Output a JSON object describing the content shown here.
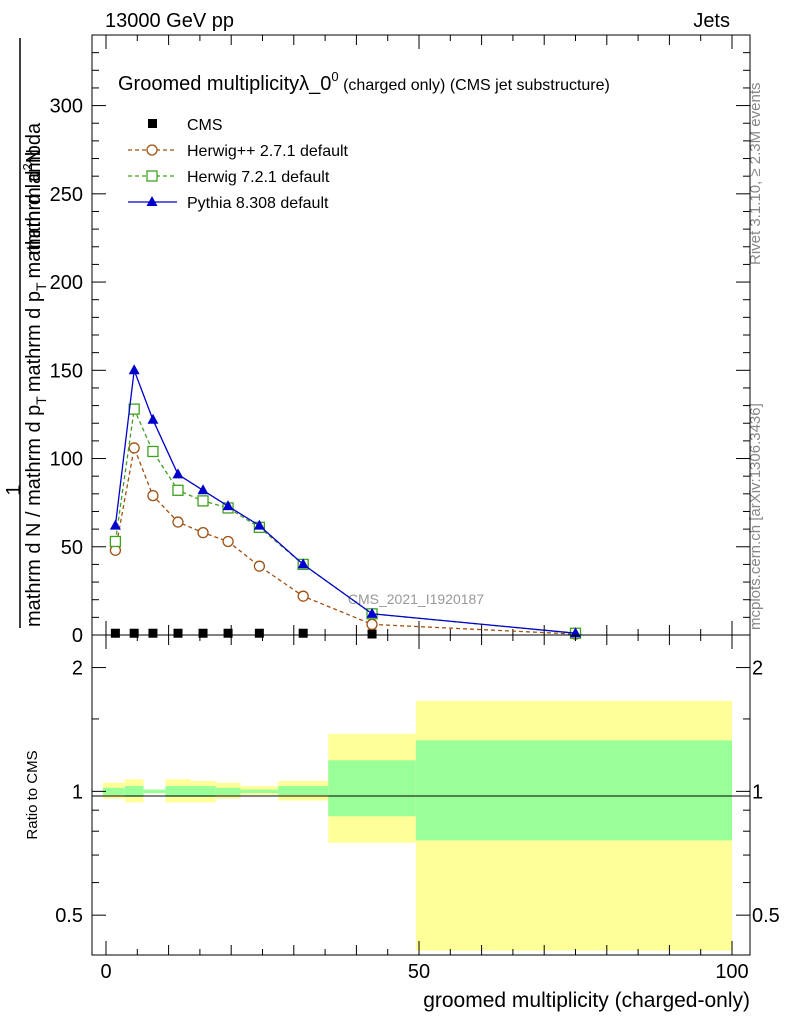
{
  "header": {
    "left": "13000 GeV pp",
    "right": "Jets"
  },
  "side_labels": {
    "rivet": "Rivet 3.1.10, ≥ 2.3M events",
    "mcplots": "mcplots.cern.ch [arXiv:1306.3436]"
  },
  "main_plot": {
    "title_main": "Groomed multiplicityλ_0",
    "title_sup": "0",
    "title_tail": " (charged only) (CMS jet substructure)",
    "ylabel_line1": "1",
    "ylabel_line2_parts": [
      "mathrm d N / mathrm d p",
      "T",
      "mathrm d p",
      "T",
      "mathrm d lambda"
    ],
    "ylabel_line3": "mathrm d",
    "ylabel_line3_sup": "2",
    "ylabel_line3_tail": "N",
    "watermark": "CMS_2021_I1920187",
    "yticks": [
      "0",
      "50",
      "100",
      "150",
      "200",
      "250",
      "300"
    ]
  },
  "ratio_plot": {
    "ylabel": "Ratio to CMS",
    "yticks": [
      "0.5",
      "1",
      "2"
    ],
    "xticks": [
      "0",
      "50",
      "100"
    ],
    "xlabel": "groomed multiplicity (charged-only)"
  },
  "legend": [
    {
      "name": "CMS",
      "marker": "filled-square",
      "color": "#000000"
    },
    {
      "name": "Herwig++ 2.7.1 default",
      "marker": "open-circle",
      "color": "#a05010"
    },
    {
      "name": "Herwig 7.2.1 default",
      "marker": "open-square",
      "color": "#40a020"
    },
    {
      "name": "Pythia 8.308 default",
      "marker": "filled-triangle",
      "color": "#0000cc"
    }
  ],
  "chart_data": {
    "type": "line",
    "x": [
      1.5,
      4.5,
      7.5,
      11.5,
      15.5,
      19.5,
      24.5,
      31.5,
      42.5,
      75
    ],
    "xlim": [
      -2,
      100
    ],
    "ylim": [
      0,
      340
    ],
    "series": [
      {
        "name": "CMS",
        "values": [
          1,
          1,
          1,
          1,
          1,
          1,
          1,
          1,
          0.5,
          0.1
        ]
      },
      {
        "name": "Herwig++ 2.7.1 default",
        "values": [
          48,
          106,
          79,
          64,
          58,
          53,
          39,
          22,
          6,
          0.5
        ]
      },
      {
        "name": "Herwig 7.2.1 default",
        "values": [
          53,
          128,
          104,
          82,
          76,
          72,
          61,
          40,
          12,
          1
        ]
      },
      {
        "name": "Pythia 8.308 default",
        "values": [
          62,
          150,
          122,
          91,
          82,
          73,
          62,
          40,
          12,
          1
        ]
      }
    ],
    "ratio": {
      "scale": "log",
      "ylim": [
        0.4,
        2.4
      ],
      "bands": [
        {
          "x": [
            -0.5,
            3
          ],
          "green": [
            0.98,
            1.02
          ],
          "yellow": [
            0.96,
            1.05
          ]
        },
        {
          "x": [
            3,
            6
          ],
          "green": [
            0.97,
            1.03
          ],
          "yellow": [
            0.94,
            1.07
          ]
        },
        {
          "x": [
            6,
            9.5
          ],
          "green": [
            0.99,
            1.01
          ],
          "yellow": [
            0.99,
            1.01
          ]
        },
        {
          "x": [
            9.5,
            13.5
          ],
          "green": [
            0.97,
            1.03
          ],
          "yellow": [
            0.94,
            1.07
          ]
        },
        {
          "x": [
            13.5,
            17.5
          ],
          "green": [
            0.97,
            1.03
          ],
          "yellow": [
            0.94,
            1.06
          ]
        },
        {
          "x": [
            17.5,
            21.5
          ],
          "green": [
            0.98,
            1.02
          ],
          "yellow": [
            0.96,
            1.05
          ]
        },
        {
          "x": [
            21.5,
            27.5
          ],
          "green": [
            0.99,
            1.01
          ],
          "yellow": [
            0.98,
            1.03
          ]
        },
        {
          "x": [
            27.5,
            35.5
          ],
          "green": [
            0.98,
            1.03
          ],
          "yellow": [
            0.95,
            1.06
          ]
        },
        {
          "x": [
            35.5,
            49.5
          ],
          "green": [
            0.87,
            1.19
          ],
          "yellow": [
            0.75,
            1.38
          ]
        },
        {
          "x": [
            49.5,
            100
          ],
          "green": [
            0.76,
            1.33
          ],
          "yellow": [
            0.41,
            1.66
          ]
        }
      ]
    }
  }
}
